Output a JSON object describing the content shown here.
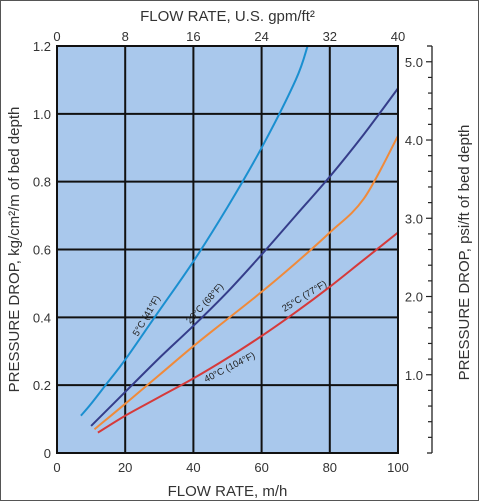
{
  "chart_data": {
    "type": "line",
    "title": "",
    "xlabel": "FLOW RATE, m/h",
    "ylabel": "PRESSURE DROP, kg/cm²/m of bed depth",
    "top_xlabel": "FLOW RATE, U.S. gpm/ft²",
    "right_ylabel": "PRESSURE DROP, psi/ft of bed depth",
    "xlim": [
      0,
      100
    ],
    "ylim": [
      0,
      1.2
    ],
    "grid": true,
    "x_ticks": [
      "0",
      "20",
      "40",
      "60",
      "80",
      "100"
    ],
    "y_ticks": [
      "0",
      "0.2",
      "0.4",
      "0.6",
      "0.8",
      "1.0",
      "1.2"
    ],
    "top_ticks": [
      "0",
      "8",
      "16",
      "24",
      "32",
      "40"
    ],
    "right_ticks": [
      "1.0",
      "2.0",
      "3.0",
      "4.0",
      "5.0"
    ],
    "series": [
      {
        "name": "5°C (41°F)",
        "color": "#1a8fd0",
        "x": [
          7,
          10,
          15,
          20,
          30,
          40,
          50,
          60,
          70,
          73.5
        ],
        "y": [
          0.11,
          0.145,
          0.21,
          0.275,
          0.42,
          0.565,
          0.725,
          0.9,
          1.1,
          1.2
        ]
      },
      {
        "name": "20°C (68°F)",
        "color": "#353d8a",
        "x": [
          10,
          20,
          30,
          40,
          50,
          60,
          70,
          80,
          90,
          100
        ],
        "y": [
          0.08,
          0.18,
          0.28,
          0.375,
          0.475,
          0.585,
          0.7,
          0.815,
          0.94,
          1.075
        ]
      },
      {
        "name": "25°C (77°F)",
        "color": "#f08a3a",
        "x": [
          11,
          20,
          30,
          40,
          50,
          60,
          70,
          80,
          90,
          100
        ],
        "y": [
          0.07,
          0.145,
          0.23,
          0.315,
          0.395,
          0.475,
          0.56,
          0.65,
          0.75,
          0.935
        ]
      },
      {
        "name": "40°C (104°F)",
        "color": "#d63a3a",
        "x": [
          12,
          20,
          30,
          40,
          50,
          60,
          70,
          80,
          90,
          100
        ],
        "y": [
          0.06,
          0.11,
          0.165,
          0.22,
          0.28,
          0.345,
          0.415,
          0.49,
          0.57,
          0.65
        ]
      }
    ]
  }
}
